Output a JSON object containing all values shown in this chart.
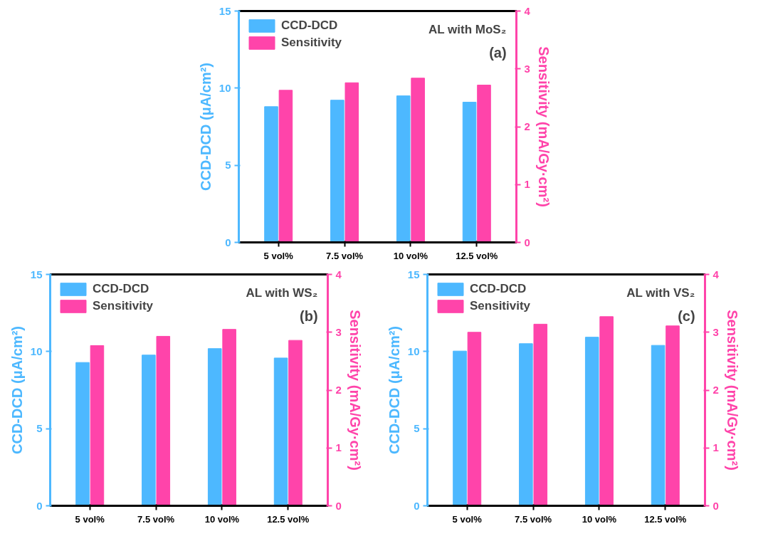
{
  "chart_data": [
    {
      "type": "bar",
      "categories": [
        "5 vol%",
        "7.5 vol%",
        "10 vol%",
        "12.5 vol%"
      ],
      "ylabel": "CCD-DCD (μA/cm²)",
      "y2label": "Sensitivity (mA/Gy·cm²)",
      "ylim": [
        0,
        15
      ],
      "yticks": [
        0,
        5,
        10,
        15
      ],
      "y2lim": [
        0,
        4
      ],
      "y2ticks": [
        0,
        1,
        2,
        3,
        4
      ],
      "legend": "top left",
      "grid": false,
      "annotations": [
        "AL with MoS₂",
        "(a)"
      ],
      "series": [
        {
          "name": "CCD-DCD",
          "color": "#4db8ff",
          "values": [
            8.8,
            9.22,
            9.5,
            9.09
          ]
        },
        {
          "name": "Sensitivity",
          "color": "#ff44aa",
          "axis": "y2",
          "values": [
            2.63,
            2.76,
            2.84,
            2.72
          ]
        }
      ]
    },
    {
      "type": "bar",
      "categories": [
        "5 vol%",
        "7.5 vol%",
        "10 vol%",
        "12.5 vol%"
      ],
      "ylabel": "CCD-DCD (μA/cm²)",
      "y2label": "Sensitivity (mA/Gy·cm²)",
      "ylim": [
        0,
        15
      ],
      "yticks": [
        0,
        5,
        10,
        15
      ],
      "y2lim": [
        0,
        4
      ],
      "y2ticks": [
        0,
        1,
        2,
        3,
        4
      ],
      "legend": "top left",
      "grid": false,
      "annotations": [
        "AL with WS₂",
        "(b)"
      ],
      "series": [
        {
          "name": "CCD-DCD",
          "color": "#4db8ff",
          "values": [
            9.29,
            9.77,
            10.19,
            9.58
          ]
        },
        {
          "name": "Sensitivity",
          "color": "#ff44aa",
          "axis": "y2",
          "values": [
            2.77,
            2.93,
            3.05,
            2.86
          ]
        }
      ]
    },
    {
      "type": "bar",
      "categories": [
        "5 vol%",
        "7.5 vol%",
        "10 vol%",
        "12.5 vol%"
      ],
      "ylabel": "CCD-DCD (μA/cm²)",
      "y2label": "Sensitivity (mA/Gy·cm²)",
      "ylim": [
        0,
        15
      ],
      "yticks": [
        0,
        5,
        10,
        15
      ],
      "y2lim": [
        0,
        4
      ],
      "y2ticks": [
        0,
        1,
        2,
        3,
        4
      ],
      "legend": "top left",
      "grid": false,
      "annotations": [
        "AL with VS₂",
        "(c)"
      ],
      "series": [
        {
          "name": "CCD-DCD",
          "color": "#4db8ff",
          "values": [
            10.03,
            10.51,
            10.93,
            10.4
          ]
        },
        {
          "name": "Sensitivity",
          "color": "#ff44aa",
          "axis": "y2",
          "values": [
            3.0,
            3.14,
            3.27,
            3.11
          ]
        }
      ]
    }
  ]
}
